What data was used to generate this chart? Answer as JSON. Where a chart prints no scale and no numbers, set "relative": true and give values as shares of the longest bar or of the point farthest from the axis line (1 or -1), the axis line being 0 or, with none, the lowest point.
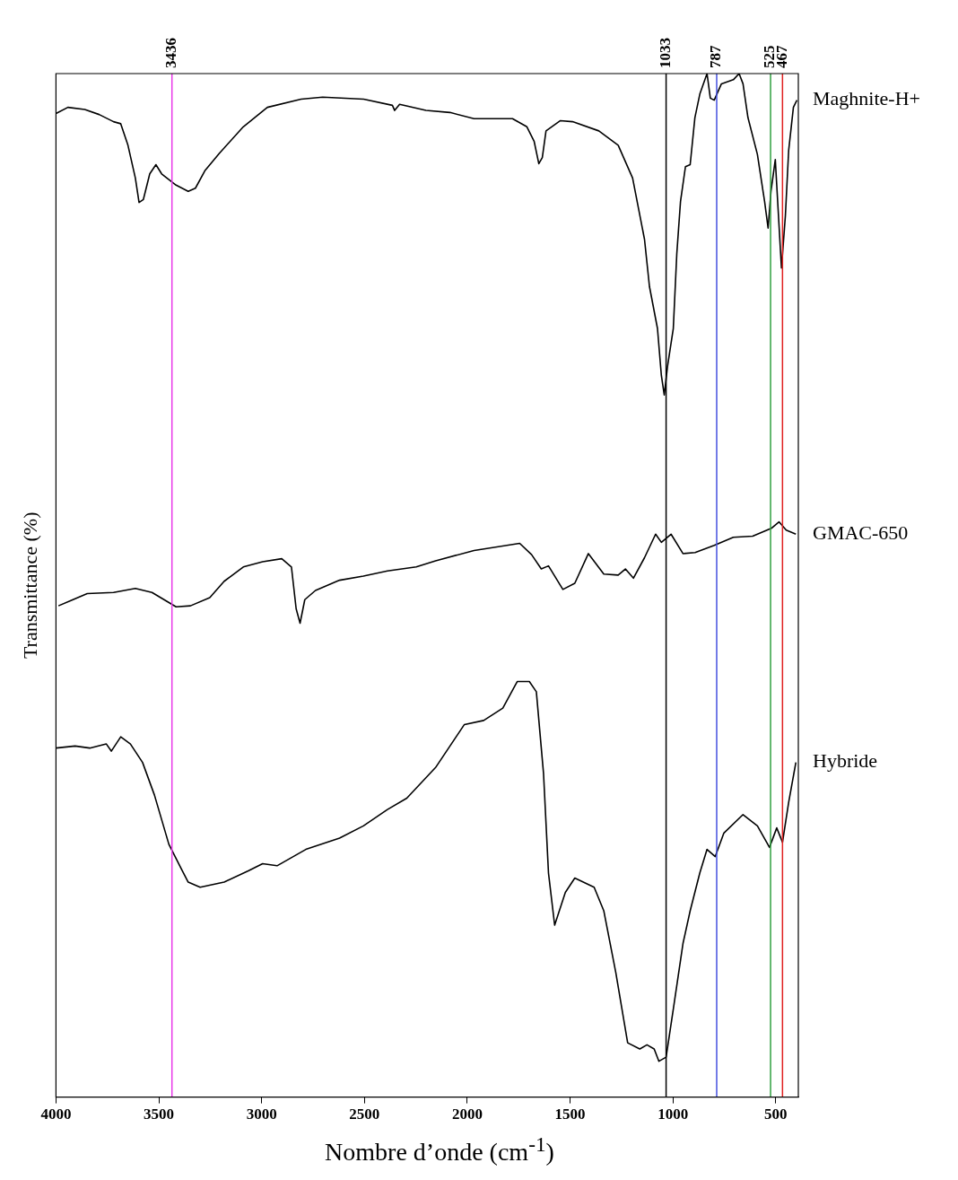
{
  "chart_data": {
    "type": "line",
    "relative": true,
    "xlabel": "Nombre d’onde (cm$^{-1}$)",
    "ylabel": "Transmittance (%)",
    "xlim": [
      4000,
      390
    ],
    "xticks": [
      4000,
      3500,
      3000,
      2500,
      2000,
      1500,
      1000,
      500
    ],
    "legend": false,
    "grid": false,
    "marker": "none",
    "line_style": "solid",
    "ref_lines": [
      {
        "axis": "x",
        "value": 3436,
        "label": "3436",
        "color": "#e838e8"
      },
      {
        "axis": "x",
        "value": 1033,
        "label": "1033",
        "color": "#000000"
      },
      {
        "axis": "x",
        "value": 787,
        "label": "787",
        "color": "#4450e0"
      },
      {
        "axis": "x",
        "value": 525,
        "label": "525",
        "color": "#30a040"
      },
      {
        "axis": "x",
        "value": 467,
        "label": "467",
        "color": "#e02020"
      }
    ],
    "series": [
      {
        "name": "Maghnite-H+",
        "color": "#000000",
        "x": [
          4000,
          3942,
          3860,
          3790,
          3720,
          3685,
          3650,
          3614,
          3596,
          3575,
          3544,
          3514,
          3486,
          3416,
          3357,
          3322,
          3276,
          3206,
          3089,
          2972,
          2808,
          2703,
          2504,
          2364,
          2353,
          2329,
          2201,
          2084,
          1967,
          1780,
          1710,
          1675,
          1652,
          1635,
          1617,
          1547,
          1488,
          1360,
          1266,
          1196,
          1138,
          1114,
          1075,
          1056,
          1042,
          1026,
          998,
          981,
          963,
          939,
          916,
          893,
          869,
          834,
          818,
          799,
          764,
          706,
          678,
          659,
          635,
          589,
          554,
          537,
          523,
          502,
          495,
          484,
          472,
          453,
          437,
          414,
          397
        ],
        "values": [
          0.961,
          0.967,
          0.965,
          0.96,
          0.953,
          0.951,
          0.93,
          0.898,
          0.874,
          0.877,
          0.902,
          0.911,
          0.902,
          0.891,
          0.885,
          0.888,
          0.905,
          0.922,
          0.948,
          0.967,
          0.975,
          0.977,
          0.975,
          0.969,
          0.964,
          0.97,
          0.964,
          0.962,
          0.956,
          0.956,
          0.948,
          0.934,
          0.912,
          0.918,
          0.944,
          0.954,
          0.953,
          0.944,
          0.93,
          0.898,
          0.838,
          0.792,
          0.751,
          0.705,
          0.686,
          0.714,
          0.751,
          0.824,
          0.875,
          0.909,
          0.911,
          0.957,
          0.98,
          1,
          0.976,
          0.974,
          0.99,
          0.994,
          1,
          0.99,
          0.957,
          0.921,
          0.875,
          0.849,
          0.885,
          0.916,
          0.891,
          0.852,
          0.81,
          0.861,
          0.925,
          0.967,
          0.974
        ]
      },
      {
        "name": "GMAC-650",
        "color": "#000000",
        "x": [
          3988,
          3930,
          3848,
          3720,
          3614,
          3533,
          3416,
          3346,
          3252,
          3182,
          3089,
          2995,
          2902,
          2855,
          2832,
          2813,
          2790,
          2738,
          2621,
          2505,
          2388,
          2248,
          2154,
          1967,
          1745,
          1687,
          1640,
          1605,
          1535,
          1477,
          1411,
          1336,
          1266,
          1231,
          1192,
          1138,
          1084,
          1056,
          1009,
          951,
          892,
          799,
          706,
          612,
          519,
          484,
          449,
          402
        ],
        "values": [
          0.48,
          0.485,
          0.492,
          0.493,
          0.497,
          0.493,
          0.479,
          0.48,
          0.488,
          0.504,
          0.518,
          0.523,
          0.526,
          0.518,
          0.477,
          0.463,
          0.486,
          0.495,
          0.505,
          0.509,
          0.514,
          0.518,
          0.524,
          0.534,
          0.541,
          0.53,
          0.516,
          0.519,
          0.496,
          0.502,
          0.531,
          0.511,
          0.51,
          0.516,
          0.507,
          0.527,
          0.55,
          0.542,
          0.55,
          0.531,
          0.532,
          0.539,
          0.547,
          0.548,
          0.556,
          0.562,
          0.554,
          0.55
        ]
      },
      {
        "name": "Hybride",
        "color": "#000000",
        "x": [
          4000,
          3907,
          3836,
          3755,
          3731,
          3685,
          3638,
          3579,
          3521,
          3451,
          3393,
          3357,
          3299,
          3182,
          3065,
          2995,
          2925,
          2785,
          2621,
          2505,
          2388,
          2294,
          2154,
          2014,
          1920,
          1827,
          1757,
          1698,
          1664,
          1629,
          1605,
          1575,
          1523,
          1477,
          1383,
          1336,
          1278,
          1220,
          1161,
          1126,
          1091,
          1068,
          1033,
          998,
          951,
          916,
          869,
          834,
          794,
          752,
          659,
          589,
          530,
          495,
          467,
          437,
          402
        ],
        "values": [
          0.341,
          0.343,
          0.341,
          0.345,
          0.338,
          0.352,
          0.345,
          0.327,
          0.295,
          0.247,
          0.224,
          0.21,
          0.205,
          0.21,
          0.221,
          0.228,
          0.226,
          0.242,
          0.253,
          0.265,
          0.281,
          0.292,
          0.322,
          0.364,
          0.368,
          0.38,
          0.406,
          0.406,
          0.396,
          0.316,
          0.219,
          0.168,
          0.2,
          0.214,
          0.205,
          0.182,
          0.122,
          0.053,
          0.047,
          0.051,
          0.047,
          0.035,
          0.039,
          0.086,
          0.15,
          0.182,
          0.219,
          0.242,
          0.235,
          0.258,
          0.276,
          0.265,
          0.244,
          0.263,
          0.249,
          0.288,
          0.327
        ]
      }
    ]
  }
}
